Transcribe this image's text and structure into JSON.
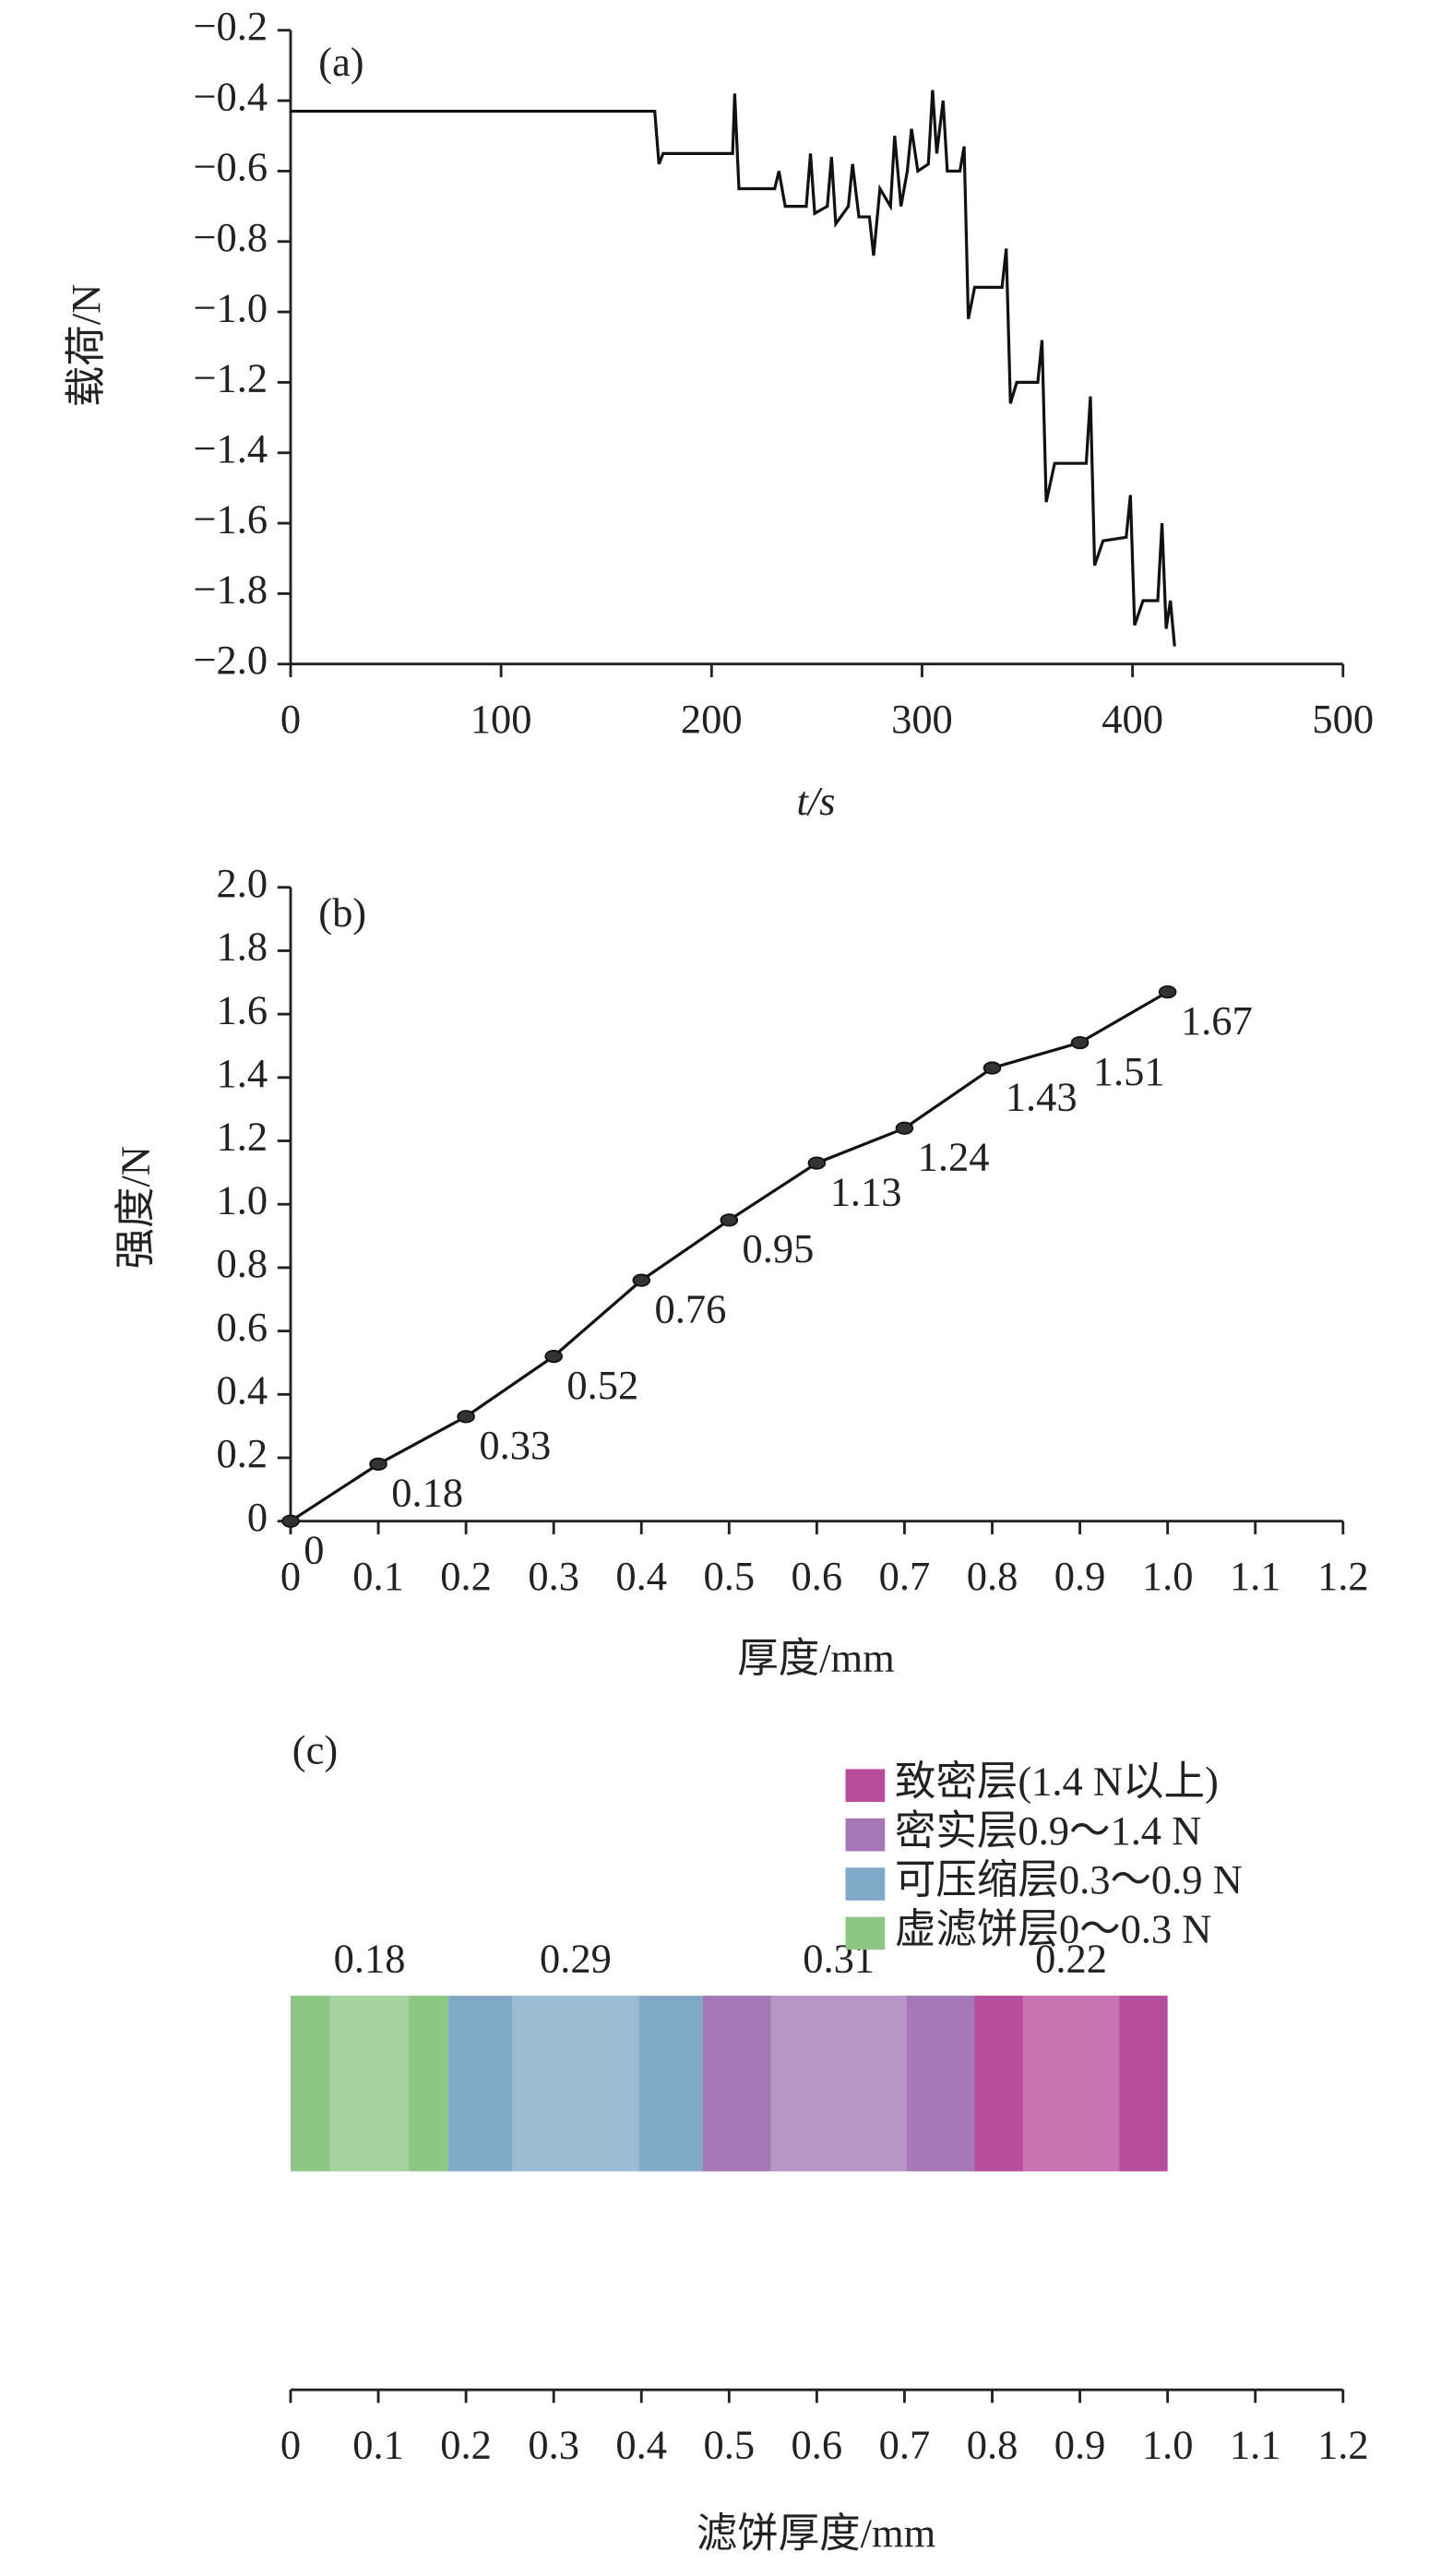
{
  "chart_data": [
    {
      "type": "line",
      "annotation": "(a)",
      "x_label": "t/s",
      "y_label": "载荷/N",
      "color": "#111111",
      "x": [
        0,
        173,
        175,
        177,
        210,
        211,
        213,
        230,
        232,
        235,
        245,
        247,
        249,
        255,
        257,
        259,
        265,
        267,
        270,
        275,
        277,
        280,
        285,
        287,
        290,
        293,
        295,
        298,
        303,
        305,
        307,
        310,
        312,
        318,
        320,
        322,
        325,
        338,
        340,
        342,
        345,
        355,
        357,
        359,
        363,
        378,
        380,
        382,
        386,
        397,
        399,
        401,
        405,
        412,
        414,
        416,
        418,
        420
      ],
      "values": [
        -0.43,
        -0.43,
        -0.58,
        -0.55,
        -0.55,
        -0.38,
        -0.65,
        -0.65,
        -0.6,
        -0.7,
        -0.7,
        -0.55,
        -0.72,
        -0.7,
        -0.56,
        -0.75,
        -0.7,
        -0.58,
        -0.73,
        -0.73,
        -0.84,
        -0.65,
        -0.7,
        -0.5,
        -0.7,
        -0.6,
        -0.48,
        -0.6,
        -0.58,
        -0.37,
        -0.55,
        -0.4,
        -0.6,
        -0.6,
        -0.53,
        -1.02,
        -0.93,
        -0.93,
        -0.82,
        -1.26,
        -1.2,
        -1.2,
        -1.08,
        -1.54,
        -1.43,
        -1.43,
        -1.24,
        -1.72,
        -1.65,
        -1.64,
        -1.52,
        -1.89,
        -1.82,
        -1.82,
        -1.6,
        -1.9,
        -1.82,
        -1.95
      ],
      "xlim": [
        0,
        500
      ],
      "xticks": [
        0,
        100,
        200,
        300,
        400,
        500
      ],
      "ylim": [
        -2.0,
        -0.2
      ],
      "yticks": [
        {
          "value": -2.0,
          "label": "−2.0"
        },
        {
          "value": -1.8,
          "label": "−1.8"
        },
        {
          "value": -1.6,
          "label": "−1.6"
        },
        {
          "value": -1.4,
          "label": "−1.4"
        },
        {
          "value": -1.2,
          "label": "−1.2"
        },
        {
          "value": -1.0,
          "label": "−1.0"
        },
        {
          "value": -0.8,
          "label": "−0.8"
        },
        {
          "value": -0.6,
          "label": "−0.6"
        },
        {
          "value": -0.4,
          "label": "−0.4"
        },
        {
          "value": -0.2,
          "label": "−0.2"
        }
      ]
    },
    {
      "type": "line",
      "annotation": "(b)",
      "x_label": "厚度/mm",
      "y_label": "强度/N",
      "color": "#111111",
      "markers": true,
      "x": [
        0,
        0.1,
        0.2,
        0.3,
        0.4,
        0.5,
        0.6,
        0.7,
        0.8,
        0.9,
        1.0
      ],
      "values": [
        0,
        0.18,
        0.33,
        0.52,
        0.76,
        0.95,
        1.13,
        1.24,
        1.43,
        1.51,
        1.67
      ],
      "xlim": [
        0,
        1.2
      ],
      "xticks": [
        0,
        0.1,
        0.2,
        0.3,
        0.4,
        0.5,
        0.6,
        0.7,
        0.8,
        0.9,
        {
          "value": 1.0,
          "label": "1.0"
        },
        1.1,
        1.2
      ],
      "ylim": [
        0,
        2.0
      ],
      "yticks": [
        0,
        0.2,
        0.4,
        0.6,
        0.8,
        {
          "value": 1.0,
          "label": "1.0"
        },
        1.2,
        1.4,
        1.6,
        1.8,
        {
          "value": 2.0,
          "label": "2.0"
        }
      ]
    },
    {
      "type": "stacked_bar",
      "orientation": "horizontal",
      "annotation": "(c)",
      "x_label": "滤饼厚度/mm",
      "series": [
        {
          "name": "虚滤饼层0～0.3 N",
          "color": "#8cc784",
          "values": [
            0.18
          ]
        },
        {
          "name": "可压缩层0.3～0.9 N",
          "color": "#7fa9c6",
          "values": [
            0.29
          ]
        },
        {
          "name": "密实层0.9～1.4 N",
          "color": "#a677b6",
          "values": [
            0.31
          ]
        },
        {
          "name": "致密层(1.4 N以上)",
          "color": "#b94d9d",
          "values": [
            0.22
          ]
        }
      ],
      "xlim": [
        0,
        1.2
      ],
      "xticks": [
        0,
        0.1,
        0.2,
        0.3,
        0.4,
        0.5,
        0.6,
        0.7,
        0.8,
        0.9,
        {
          "value": 1.0,
          "label": "1.0"
        },
        1.1,
        1.2
      ]
    }
  ]
}
